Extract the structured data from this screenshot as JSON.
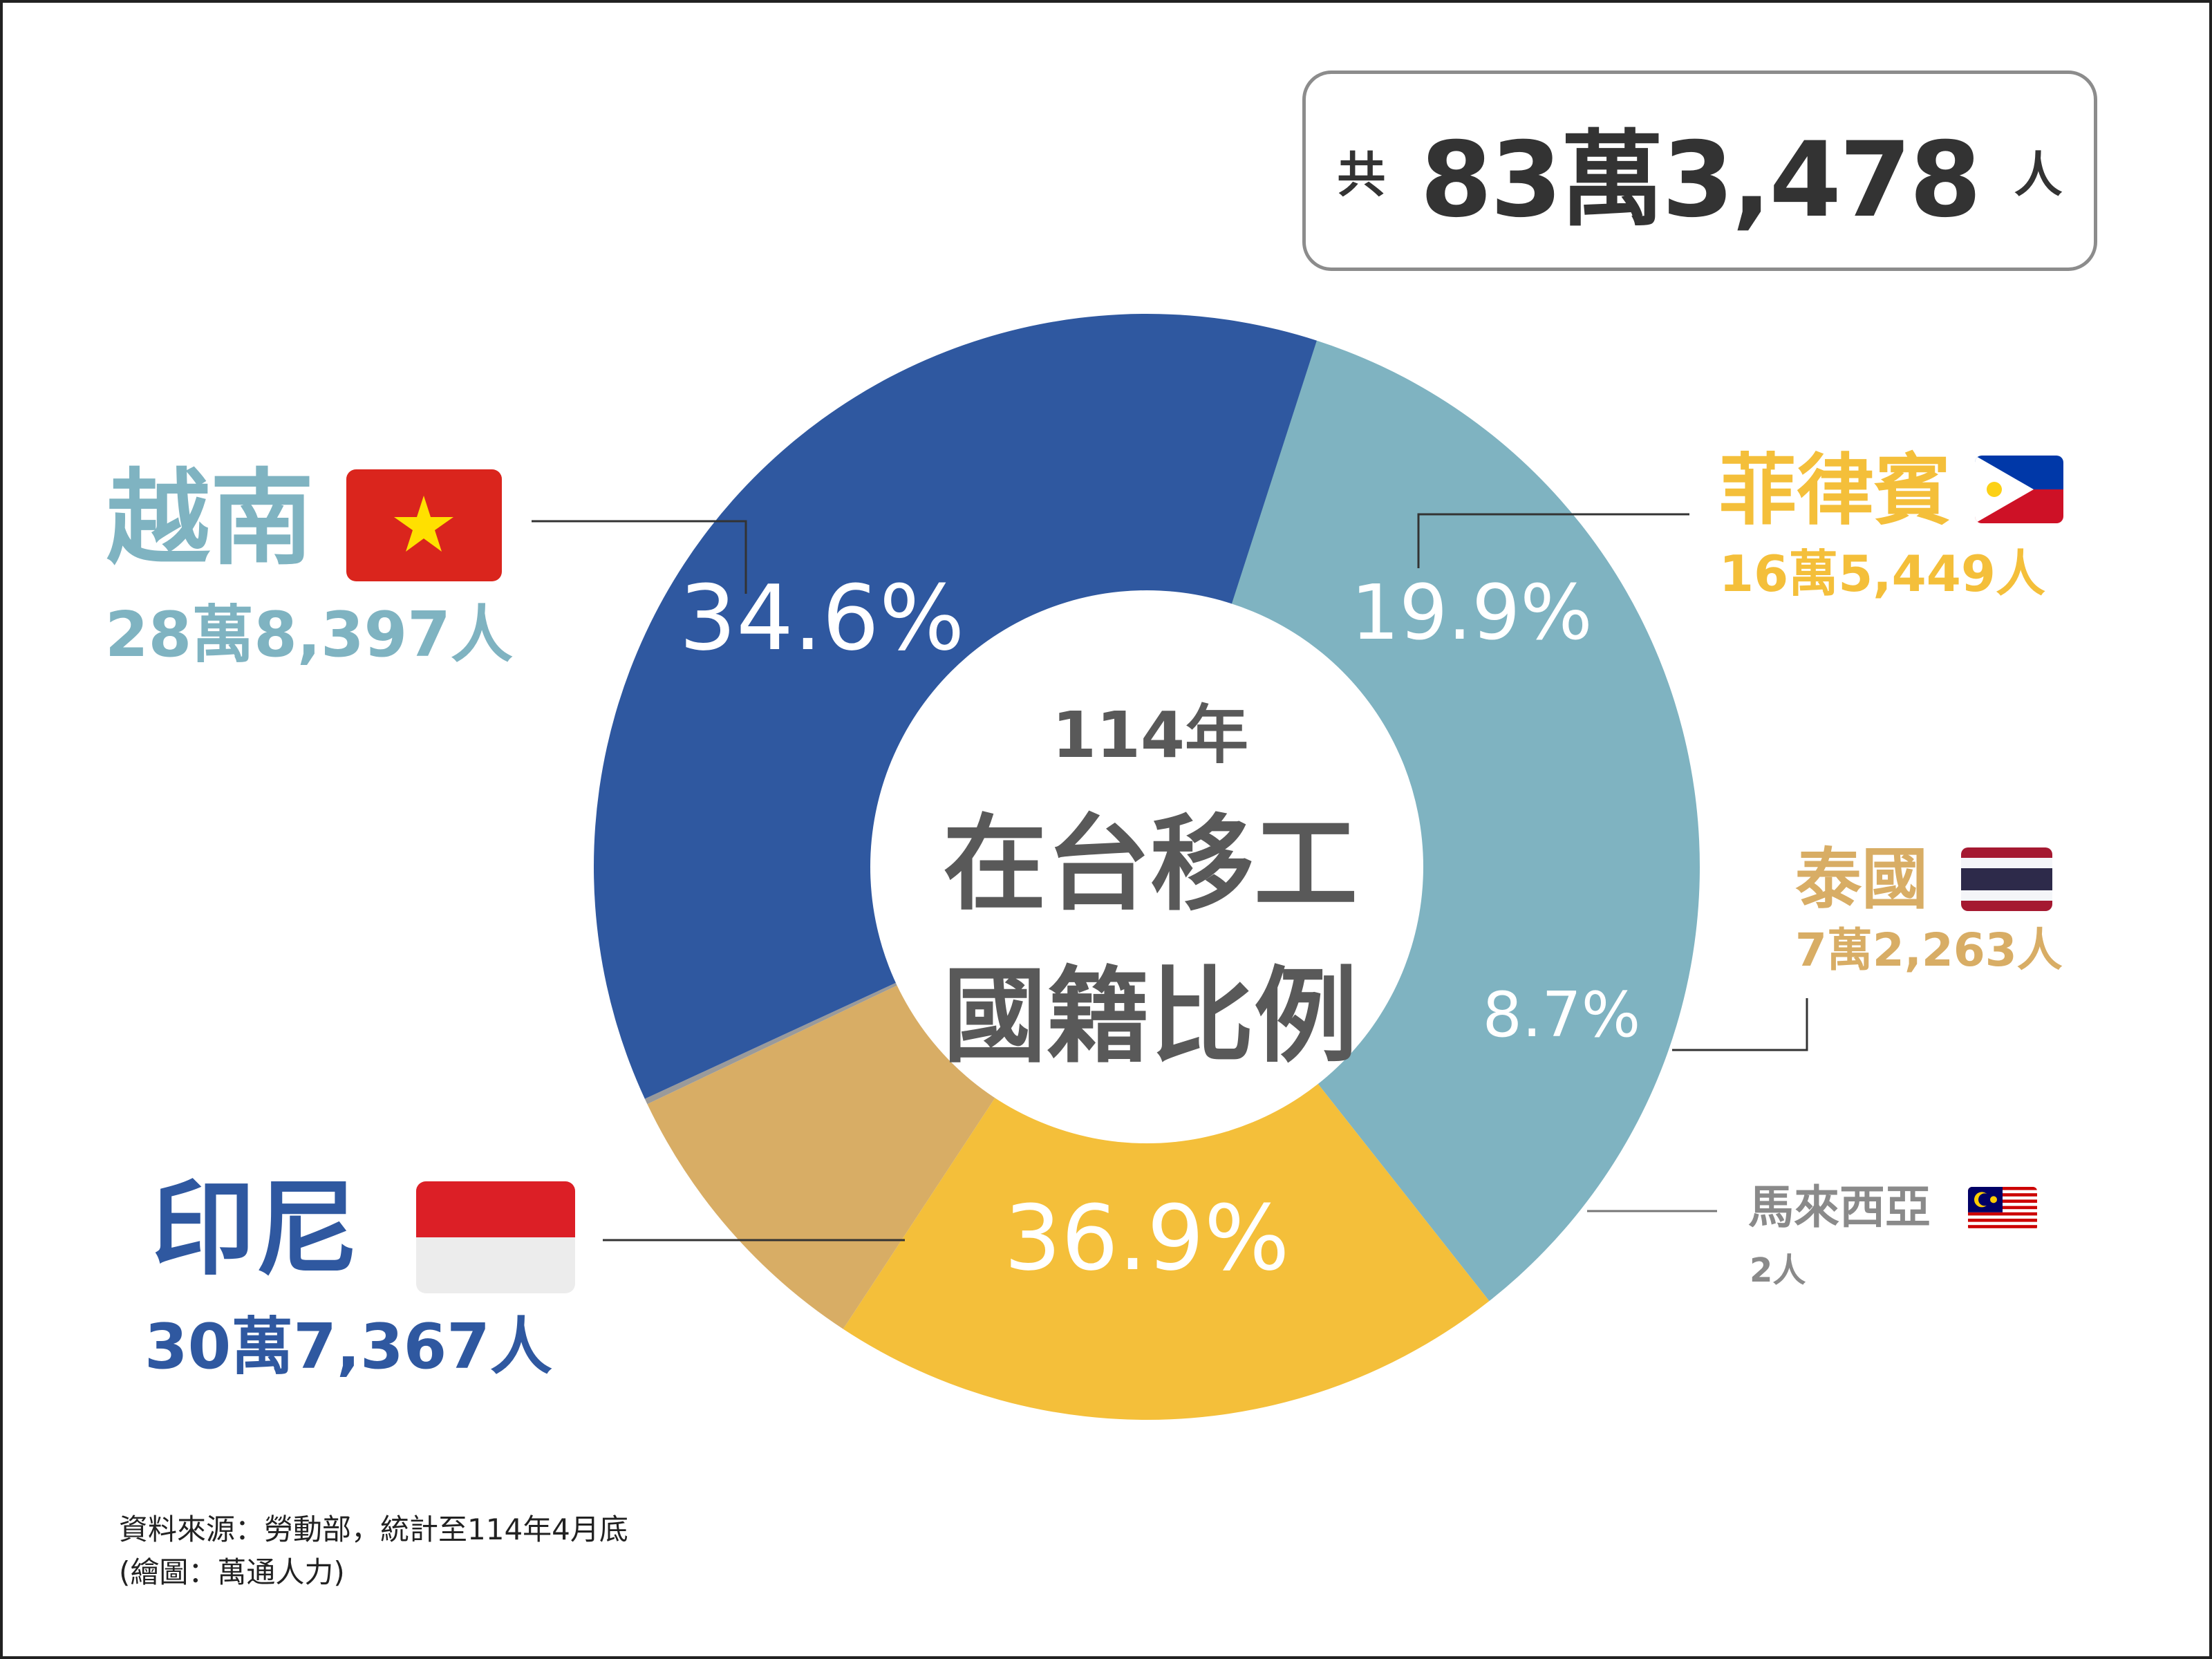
{
  "chart_data": {
    "type": "pie",
    "title": "114年 在台移工 國籍比例",
    "title_year": "114年",
    "title_line1": "在台移工",
    "title_line2": "國籍比例",
    "categories": [
      "越南",
      "菲律賓",
      "泰國",
      "馬來西亞",
      "印尼"
    ],
    "percent_labels": [
      "34.6%",
      "19.9%",
      "8.7%",
      "",
      "36.9%"
    ],
    "values_pct": [
      34.6,
      19.9,
      8.7,
      0.0002,
      36.9
    ],
    "counts": [
      "28萬8,397人",
      "16萬5,449人",
      "7萬2,263人",
      "2人",
      "30萬7,367人"
    ],
    "colors": [
      "#7fb3c1",
      "#f4bf3a",
      "#d8ad65",
      "#9a9a9a",
      "#2f58a0"
    ],
    "start_angle_deg": 17.3,
    "inner_radius_ratio": 0.5
  },
  "total": {
    "prefix": "共",
    "value": "83萬3,478",
    "suffix": "人"
  },
  "labels": {
    "vietnam": {
      "name": "越南",
      "count": "28萬8,397人",
      "percent": "34.6%",
      "color": "#7fb3c1"
    },
    "philippines": {
      "name": "菲律賓",
      "count": "16萬5,449人",
      "percent": "19.9%",
      "color": "#f4bf3a"
    },
    "thailand": {
      "name": "泰國",
      "count": "7萬2,263人",
      "percent": "8.7%",
      "color": "#d8ad65"
    },
    "malaysia": {
      "name": "馬來西亞",
      "count": "2人",
      "color": "#9a9a9a"
    },
    "indonesia": {
      "name": "印尼",
      "count": "30萬7,367人",
      "percent": "36.9%",
      "color": "#2f58a0"
    }
  },
  "source": {
    "line1": "資料來源：勞動部，統計至114年4月底",
    "line2": "(繪圖：萬通人力)"
  }
}
